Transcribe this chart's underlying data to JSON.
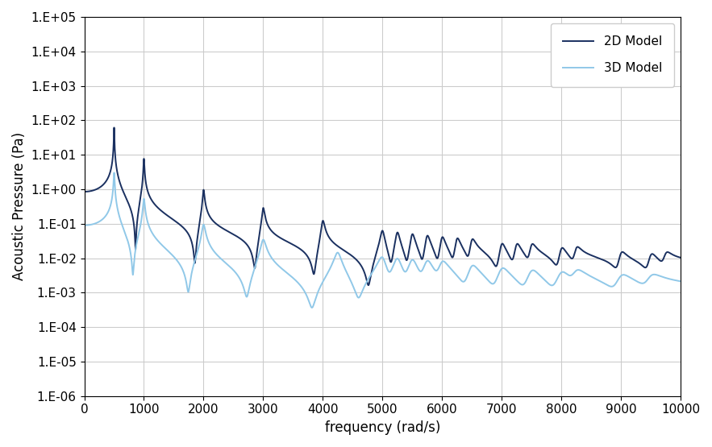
{
  "title": "",
  "xlabel": "frequency (rad/s)",
  "ylabel": "Acoustic Pressure (Pa)",
  "xlim": [
    0,
    10000
  ],
  "ylim_log": [
    -6,
    5
  ],
  "legend_2d": "2D Model",
  "legend_3d": "3D Model",
  "color_2d": "#1a3060",
  "color_3d": "#90c8e8",
  "linewidth_2d": 1.4,
  "linewidth_3d": 1.4,
  "background_color": "#ffffff",
  "grid_color": "#cccccc",
  "xlabel_fontsize": 12,
  "ylabel_fontsize": 12,
  "tick_fontsize": 11,
  "legend_fontsize": 11,
  "peaks_2d": [
    500,
    1000,
    2000,
    3000,
    4000,
    5000,
    5250,
    5500,
    5750,
    6000,
    6250,
    6500,
    7000,
    7250,
    7500,
    8000,
    8250,
    9000,
    9500,
    9750
  ],
  "peaks_3d": [
    500,
    1000,
    2000,
    3000,
    4250,
    5000,
    5250,
    5500,
    5750,
    6000,
    6500,
    7000,
    7500,
    8000,
    8250,
    9000,
    9500
  ],
  "zeta_2d": 0.006,
  "zeta_3d": 0.012,
  "scale_2d_dc": 0.85,
  "scale_3d_dc": 0.09
}
